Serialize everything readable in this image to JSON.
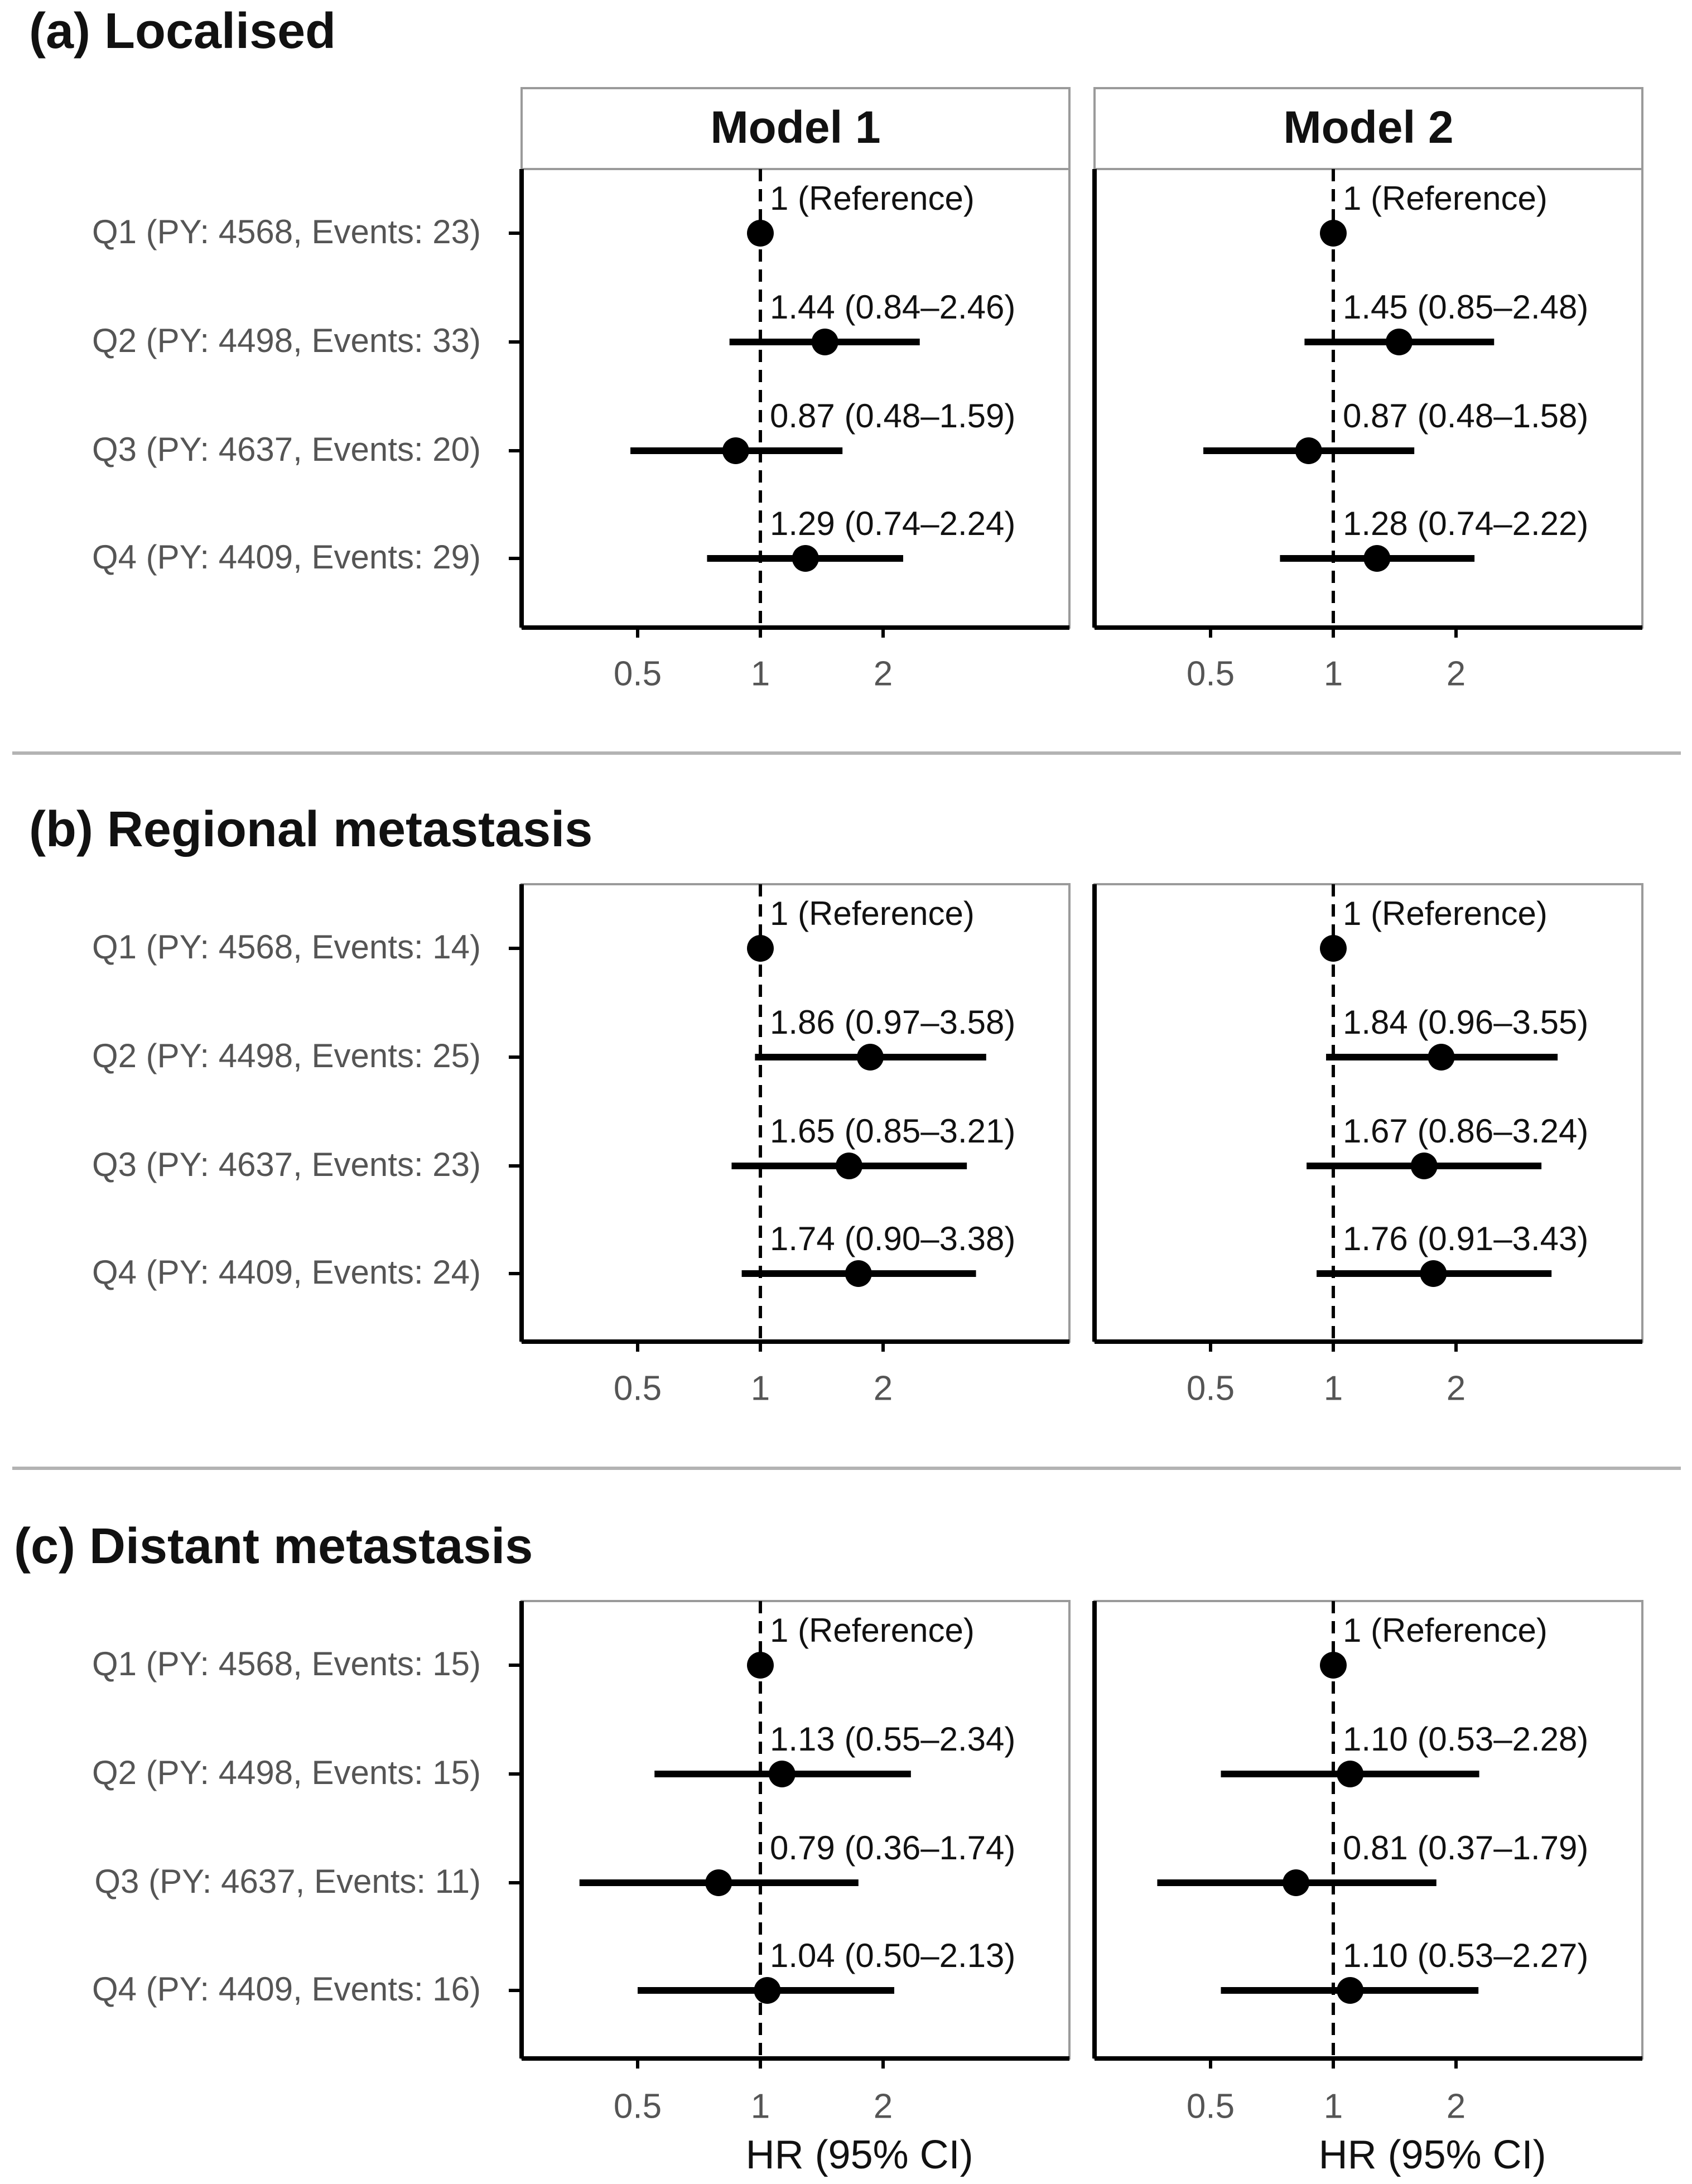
{
  "colors": {
    "ink": "#000000",
    "panel_border": "#9a9a9a",
    "separator": "#b3b3b3",
    "row_label": "#555555"
  },
  "chart_data": {
    "type": "forest",
    "x_scale": "log",
    "x_ticks": [
      0.5,
      1,
      2
    ],
    "x_tick_labels": [
      "0.5",
      "1",
      "2"
    ],
    "reference_line": 1,
    "xlabel": "HR (95% CI)",
    "models": [
      "Model 1",
      "Model 2"
    ],
    "sections": [
      {
        "title": "(a) Localised",
        "rows": [
          {
            "label": "Q1 (PY: 4568, Events: 23)",
            "model1": {
              "hr": 1,
              "lo": 1,
              "hi": 1,
              "text": "1 (Reference)"
            },
            "model2": {
              "hr": 1,
              "lo": 1,
              "hi": 1,
              "text": "1 (Reference)"
            }
          },
          {
            "label": "Q2 (PY: 4498, Events: 33)",
            "model1": {
              "hr": 1.44,
              "lo": 0.84,
              "hi": 2.46,
              "text": "1.44 (0.84–2.46)"
            },
            "model2": {
              "hr": 1.45,
              "lo": 0.85,
              "hi": 2.48,
              "text": "1.45 (0.85–2.48)"
            }
          },
          {
            "label": "Q3 (PY: 4637, Events: 20)",
            "model1": {
              "hr": 0.87,
              "lo": 0.48,
              "hi": 1.59,
              "text": "0.87 (0.48–1.59)"
            },
            "model2": {
              "hr": 0.87,
              "lo": 0.48,
              "hi": 1.58,
              "text": "0.87 (0.48–1.58)"
            }
          },
          {
            "label": "Q4 (PY: 4409, Events: 29)",
            "model1": {
              "hr": 1.29,
              "lo": 0.74,
              "hi": 2.24,
              "text": "1.29 (0.74–2.24)"
            },
            "model2": {
              "hr": 1.28,
              "lo": 0.74,
              "hi": 2.22,
              "text": "1.28 (0.74–2.22)"
            }
          }
        ]
      },
      {
        "title": "(b) Regional metastasis",
        "rows": [
          {
            "label": "Q1 (PY: 4568, Events: 14)",
            "model1": {
              "hr": 1,
              "lo": 1,
              "hi": 1,
              "text": "1 (Reference)"
            },
            "model2": {
              "hr": 1,
              "lo": 1,
              "hi": 1,
              "text": "1 (Reference)"
            }
          },
          {
            "label": "Q2 (PY: 4498, Events: 25)",
            "model1": {
              "hr": 1.86,
              "lo": 0.97,
              "hi": 3.58,
              "text": "1.86 (0.97–3.58)"
            },
            "model2": {
              "hr": 1.84,
              "lo": 0.96,
              "hi": 3.55,
              "text": "1.84 (0.96–3.55)"
            }
          },
          {
            "label": "Q3 (PY: 4637, Events: 23)",
            "model1": {
              "hr": 1.65,
              "lo": 0.85,
              "hi": 3.21,
              "text": "1.65 (0.85–3.21)"
            },
            "model2": {
              "hr": 1.67,
              "lo": 0.86,
              "hi": 3.24,
              "text": "1.67 (0.86–3.24)"
            }
          },
          {
            "label": "Q4 (PY: 4409, Events: 24)",
            "model1": {
              "hr": 1.74,
              "lo": 0.9,
              "hi": 3.38,
              "text": "1.74 (0.90–3.38)"
            },
            "model2": {
              "hr": 1.76,
              "lo": 0.91,
              "hi": 3.43,
              "text": "1.76 (0.91–3.43)"
            }
          }
        ]
      },
      {
        "title": "(c) Distant metastasis",
        "rows": [
          {
            "label": "Q1 (PY: 4568, Events: 15)",
            "model1": {
              "hr": 1,
              "lo": 1,
              "hi": 1,
              "text": "1 (Reference)"
            },
            "model2": {
              "hr": 1,
              "lo": 1,
              "hi": 1,
              "text": "1 (Reference)"
            }
          },
          {
            "label": "Q2 (PY: 4498, Events: 15)",
            "model1": {
              "hr": 1.13,
              "lo": 0.55,
              "hi": 2.34,
              "text": "1.13 (0.55–2.34)"
            },
            "model2": {
              "hr": 1.1,
              "lo": 0.53,
              "hi": 2.28,
              "text": "1.10 (0.53–2.28)"
            }
          },
          {
            "label": "Q3 (PY: 4637, Events: 11)",
            "model1": {
              "hr": 0.79,
              "lo": 0.36,
              "hi": 1.74,
              "text": "0.79 (0.36–1.74)"
            },
            "model2": {
              "hr": 0.81,
              "lo": 0.37,
              "hi": 1.79,
              "text": "0.81 (0.37–1.79)"
            }
          },
          {
            "label": "Q4 (PY: 4409, Events: 16)",
            "model1": {
              "hr": 1.04,
              "lo": 0.5,
              "hi": 2.13,
              "text": "1.04 (0.50–2.13)"
            },
            "model2": {
              "hr": 1.1,
              "lo": 0.53,
              "hi": 2.27,
              "text": "1.10 (0.53–2.27)"
            }
          }
        ]
      }
    ]
  }
}
